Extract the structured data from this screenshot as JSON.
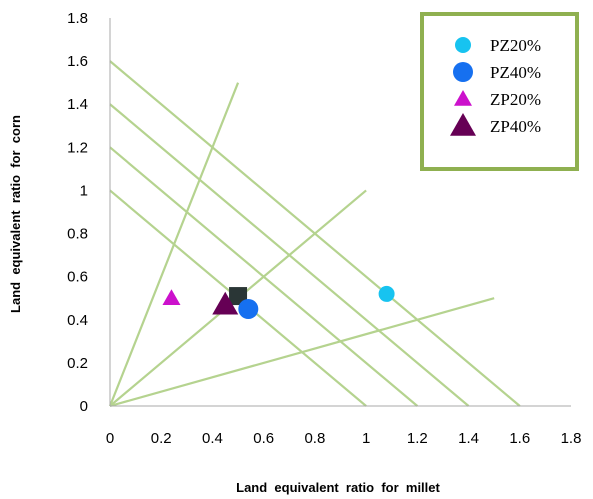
{
  "chart_data": {
    "type": "scatter",
    "xlabel": "Land  equivalent  ratio  for  millet",
    "ylabel": "Land  equivalent  ratio  for  corn",
    "xlim": [
      0,
      1.8
    ],
    "ylim": [
      0,
      1.8
    ],
    "x_ticks": [
      "0",
      "0.2",
      "0.4",
      "0.6",
      "0.8",
      "1",
      "1.2",
      "1.4",
      "1.6",
      "1.8"
    ],
    "y_ticks": [
      "0",
      "0.2",
      "0.4",
      "0.6",
      "0.8",
      "1",
      "1.2",
      "1.4",
      "1.6",
      "1.8"
    ],
    "grid": false,
    "legend_position": "top-right",
    "series": [
      {
        "name": "PZ20%",
        "marker": "circle-small",
        "color": "#17c3f0",
        "points": [
          {
            "x": 1.08,
            "y": 0.52
          }
        ]
      },
      {
        "name": "PZ40%",
        "marker": "circle-large",
        "color": "#1670f0",
        "points": [
          {
            "x": 0.54,
            "y": 0.45
          }
        ]
      },
      {
        "name": "ZP20%",
        "marker": "triangle-small",
        "color": "#cc11cc",
        "points": [
          {
            "x": 0.24,
            "y": 0.5
          }
        ]
      },
      {
        "name": "ZP40%",
        "marker": "triangle-large",
        "color": "#660055",
        "points": [
          {
            "x": 0.45,
            "y": 0.47
          }
        ]
      }
    ],
    "extra_marker": {
      "marker": "square",
      "color": "#2a3636",
      "x": 0.5,
      "y": 0.51
    },
    "reference_lines": {
      "color": "#b5d38f",
      "lines": [
        {
          "x1": 0,
          "y1": 1.0,
          "x2": 1.0,
          "y2": 0
        },
        {
          "x1": 0,
          "y1": 1.2,
          "x2": 1.2,
          "y2": 0
        },
        {
          "x1": 0,
          "y1": 1.4,
          "x2": 1.4,
          "y2": 0
        },
        {
          "x1": 0,
          "y1": 1.6,
          "x2": 1.6,
          "y2": 0
        },
        {
          "x1": 0,
          "y1": 0,
          "x2": 0.5,
          "y2": 1.5
        },
        {
          "x1": 0,
          "y1": 0,
          "x2": 1.0,
          "y2": 1.0
        },
        {
          "x1": 0,
          "y1": 0,
          "x2": 1.5,
          "y2": 0.5
        }
      ]
    },
    "legend_border_color": "#8fb050"
  }
}
